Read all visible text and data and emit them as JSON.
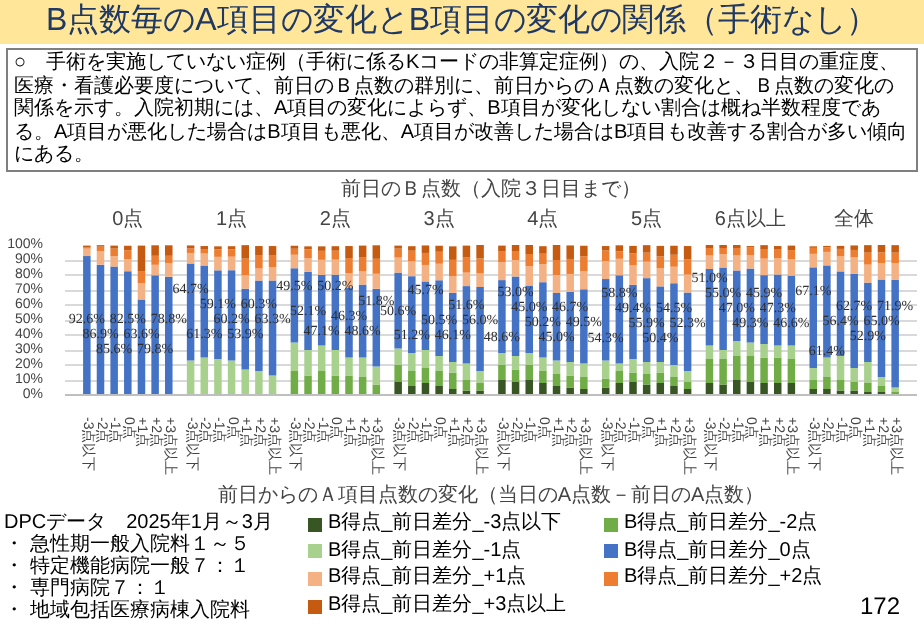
{
  "chart_data": {
    "type": "bar",
    "stacked": true,
    "legend": "bottom",
    "grid": "y",
    "title": "B点数毎のA項目の変化とB項目の変化の関係（手術なし）",
    "subtitle": "○　手術を実施していない症例（手術に係るKコードの非算定症例）の、入院２－３日目の重症度、医療・看護必要度について、前日のＢ点数の群別に、前日からのＡ点数の変化と、Ｂ点数の変化の関係を示す。入院初期には、A項目の変化によらず、B項目が変化しない割合は概ね半数程度である。A項目が悪化した場合はB項目も悪化、A項目が改善した場合はB項目も改善する割合が多い傾向にある。",
    "xlabel": "前日からのＡ項目点数の変化（当日のA点数－前日のA点数）",
    "annotations": [
      "前日のＢ点数（入院３日目まで）",
      "0点",
      "1点",
      "2点",
      "3点",
      "4点",
      "5点",
      "6点以上",
      "全体",
      "DPCデータ　2025年1月～3月",
      "・ 急性期一般入院料１～５",
      "・ 特定機能病院一般７：１",
      "・ 専門病院７：１",
      "・ 地域包括医療病棟入院料",
      "172"
    ],
    "categories": [
      "-3点以下",
      "-2点",
      "-1点",
      "0点",
      "+1点",
      "+2点",
      "+3点以上",
      "-3点以下",
      "-2点",
      "-1点",
      "0点",
      "+1点",
      "+2点",
      "+3点以上",
      "-3点以下",
      "-2点",
      "-1点",
      "0点",
      "+1点",
      "+2点",
      "+3点以上",
      "-3点以下",
      "-2点",
      "-1点",
      "0点",
      "+1点",
      "+2点",
      "+3点以上",
      "-3点以下",
      "-2点",
      "-1点",
      "0点",
      "+1点",
      "+2点",
      "+3点以上",
      "-3点以下",
      "-2点",
      "-1点",
      "0点",
      "+1点",
      "+2点",
      "+3点以上",
      "-3点以下",
      "-2点",
      "-1点",
      "0点",
      "+1点",
      "+2点",
      "+3点以上",
      "-3点以下",
      "-2点",
      "-1点",
      "0点",
      "+1点",
      "+2点",
      "+3点以上"
    ],
    "ylim": [
      0,
      100
    ],
    "yticks": [
      {
        "value": 0,
        "label": "0%"
      },
      {
        "value": 10,
        "label": "10%"
      },
      {
        "value": 20,
        "label": "20%"
      },
      {
        "value": 30,
        "label": "30%"
      },
      {
        "value": 40,
        "label": "40%"
      },
      {
        "value": 50,
        "label": "50%"
      },
      {
        "value": 60,
        "label": "60%"
      },
      {
        "value": 70,
        "label": "70%"
      },
      {
        "value": 80,
        "label": "80%"
      },
      {
        "value": 90,
        "label": "90%"
      },
      {
        "value": 100,
        "label": "100%"
      }
    ],
    "series": [
      {
        "name": "B得点_前日差分_-3点以下",
        "color": "#375623",
        "values": [
          null,
          null,
          null,
          null,
          null,
          null,
          null,
          null,
          null,
          null,
          null,
          null,
          null,
          null,
          null,
          null,
          null,
          null,
          null,
          null,
          null,
          9,
          6,
          8,
          6,
          4,
          3,
          3,
          10,
          9,
          10,
          8,
          6,
          5,
          4,
          5,
          8,
          9,
          7,
          8,
          6,
          4,
          8,
          7,
          10,
          9,
          8,
          8,
          8,
          4,
          4,
          3,
          3,
          2,
          2,
          0
        ]
      },
      {
        "name": "B得点_前日差分_-2点",
        "color": "#70ad47",
        "values": [
          null,
          null,
          null,
          null,
          null,
          null,
          null,
          null,
          null,
          null,
          null,
          null,
          null,
          null,
          16,
          13,
          16,
          13,
          13,
          12,
          7,
          11,
          10,
          10,
          10,
          11,
          7,
          5,
          10,
          8,
          10,
          8,
          8,
          8,
          8,
          6,
          8,
          6,
          7,
          7,
          6,
          5,
          16,
          17,
          16,
          17,
          17,
          17,
          16,
          6,
          8,
          7,
          6,
          6,
          4,
          2
        ]
      },
      {
        "name": "B得点_前日差分_-1点",
        "color": "#a9d18e",
        "values": [
          null,
          null,
          null,
          null,
          null,
          null,
          null,
          23,
          25,
          24,
          23,
          17,
          16,
          13,
          19,
          17,
          17,
          17,
          12,
          13,
          12,
          11,
          12,
          12,
          10,
          7,
          11,
          8,
          8,
          9,
          8,
          9,
          9,
          9,
          9,
          12,
          5,
          9,
          8,
          7,
          8,
          7,
          9,
          6,
          10,
          9,
          9,
          8,
          9,
          8,
          13,
          16,
          9,
          14,
          6,
          3
        ]
      },
      {
        "name": "B得点_前日差分_0点",
        "color": "#4472c4",
        "values": [
          92.6,
          86.9,
          85.6,
          82.5,
          63.6,
          79.8,
          78.8,
          64.7,
          61.3,
          59.1,
          60.2,
          53.9,
          60.3,
          63.3,
          49.5,
          52.1,
          47.1,
          50.2,
          46.3,
          48.6,
          51.8,
          50.6,
          51.2,
          45.7,
          50.5,
          46.1,
          51.6,
          56.0,
          48.6,
          53.0,
          45.0,
          50.2,
          45.0,
          46.7,
          49.5,
          54.3,
          58.8,
          49.4,
          55.9,
          50.4,
          54.5,
          52.3,
          51.0,
          55.0,
          47.0,
          49.3,
          45.9,
          47.3,
          46.6,
          67.1,
          61.4,
          56.4,
          62.7,
          52.9,
          65.0,
          71.9
        ],
        "value_labels": [
          "92.6%",
          "86.9%",
          "85.6%",
          "82.5%",
          "63.6%",
          "79.8%",
          "78.8%",
          "64.7%",
          "61.3%",
          "59.1%",
          "60.2%",
          "53.9%",
          "60.3%",
          "63.3%",
          "49.5%",
          "52.1%",
          "47.1%",
          "50.2%",
          "46.3%",
          "48.6%",
          "51.8%",
          "50.6%",
          "51.2%",
          "45.7%",
          "50.5%",
          "46.1%",
          "51.6%",
          "56.0%",
          "48.6%",
          "53.0%",
          "45.0%",
          "50.2%",
          "45.0%",
          "46.7%",
          "49.5%",
          "54.3%",
          "58.8%",
          "49.4%",
          "55.9%",
          "50.4%",
          "54.5%",
          "52.3%",
          "51.0%",
          "55.0%",
          "47.0%",
          "49.3%",
          "45.9%",
          "47.3%",
          "46.6%",
          "67.1%",
          "61.4%",
          "56.4%",
          "62.7%",
          "52.9%",
          "65.0%",
          "71.9%"
        ]
      },
      {
        "name": "B得点_前日差分_+1点",
        "color": "#f4b183",
        "values": [
          5,
          9,
          7,
          8,
          11,
          7,
          9,
          7,
          8,
          9,
          9,
          9,
          8,
          9,
          9,
          9,
          10,
          10,
          10,
          9,
          10,
          10,
          10,
          11,
          11,
          11,
          9,
          9,
          12,
          11,
          13,
          12,
          12,
          12,
          12,
          12,
          11,
          13,
          11,
          12,
          11,
          12,
          9,
          9,
          10,
          9,
          11,
          11,
          11,
          9,
          9,
          10,
          11,
          12,
          11,
          11
        ]
      },
      {
        "name": "B得点_前日差分_+2点",
        "color": "#ed7d31",
        "values": [
          1,
          3,
          5,
          6,
          8,
          6,
          5,
          3,
          3,
          5,
          5,
          11,
          9,
          8,
          4,
          6,
          6,
          6,
          10,
          9,
          10,
          6,
          7,
          8,
          8,
          11,
          10,
          10,
          7,
          6,
          8,
          7,
          10,
          10,
          10,
          7,
          5,
          8,
          6,
          8,
          8,
          10,
          5,
          4,
          5,
          5,
          6,
          6,
          6,
          4,
          3,
          5,
          5,
          8,
          7,
          7
        ]
      },
      {
        "name": "B得点_前日差分_+3点以上",
        "color": "#c55a11",
        "values": [
          1,
          1,
          2,
          3,
          17,
          7,
          7,
          2,
          2,
          2,
          2,
          9,
          6,
          6,
          2,
          2,
          3,
          3,
          8,
          8,
          9,
          2,
          3,
          5,
          4,
          9,
          8,
          9,
          4,
          4,
          6,
          5,
          10,
          9,
          7,
          3,
          4,
          5,
          5,
          7,
          6,
          9,
          2,
          2,
          2,
          1,
          3,
          2,
          3,
          1,
          1,
          2,
          3,
          5,
          5,
          5
        ]
      }
    ]
  }
}
